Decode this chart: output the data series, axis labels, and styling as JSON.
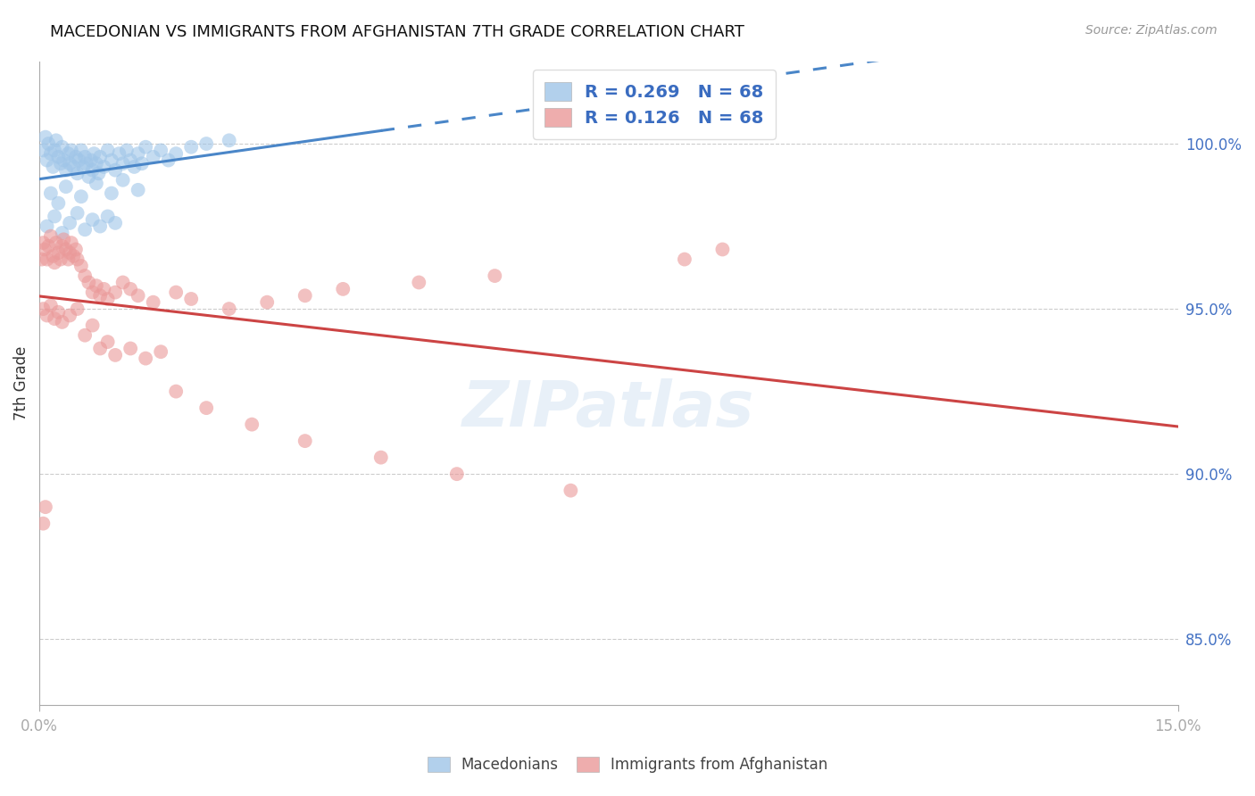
{
  "title": "MACEDONIAN VS IMMIGRANTS FROM AFGHANISTAN 7TH GRADE CORRELATION CHART",
  "source": "Source: ZipAtlas.com",
  "ylabel": "7th Grade",
  "xlim": [
    0.0,
    15.0
  ],
  "ylim": [
    83.0,
    102.5
  ],
  "yticks": [
    85.0,
    90.0,
    95.0,
    100.0
  ],
  "ytick_labels": [
    "85.0%",
    "90.0%",
    "95.0%",
    "100.0%"
  ],
  "xticks": [
    0.0,
    15.0
  ],
  "xtick_labels": [
    "0.0%",
    "15.0%"
  ],
  "blue_R": 0.269,
  "blue_N": 68,
  "pink_R": 0.126,
  "pink_N": 68,
  "blue_color": "#9fc5e8",
  "pink_color": "#ea9999",
  "blue_line_color": "#4a86c8",
  "pink_line_color": "#cc4444",
  "legend_blue_label": "Macedonians",
  "legend_pink_label": "Immigrants from Afghanistan",
  "blue_scatter_x": [
    0.05,
    0.08,
    0.1,
    0.12,
    0.15,
    0.18,
    0.2,
    0.22,
    0.25,
    0.28,
    0.3,
    0.32,
    0.35,
    0.38,
    0.4,
    0.42,
    0.45,
    0.48,
    0.5,
    0.52,
    0.55,
    0.58,
    0.6,
    0.62,
    0.65,
    0.68,
    0.7,
    0.72,
    0.75,
    0.78,
    0.8,
    0.85,
    0.9,
    0.95,
    1.0,
    1.05,
    1.1,
    1.15,
    1.2,
    1.25,
    1.3,
    1.35,
    1.4,
    1.5,
    1.6,
    1.7,
    1.8,
    2.0,
    2.2,
    2.5,
    0.15,
    0.25,
    0.35,
    0.55,
    0.75,
    0.95,
    1.1,
    1.3,
    0.1,
    0.2,
    0.3,
    0.4,
    0.5,
    0.6,
    0.7,
    0.8,
    0.9,
    1.0
  ],
  "blue_scatter_y": [
    99.8,
    100.2,
    99.5,
    100.0,
    99.7,
    99.3,
    99.8,
    100.1,
    99.6,
    99.4,
    99.9,
    99.5,
    99.2,
    99.7,
    99.4,
    99.8,
    99.3,
    99.6,
    99.1,
    99.5,
    99.8,
    99.3,
    99.6,
    99.4,
    99.0,
    99.5,
    99.2,
    99.7,
    99.4,
    99.1,
    99.6,
    99.3,
    99.8,
    99.5,
    99.2,
    99.7,
    99.4,
    99.8,
    99.5,
    99.3,
    99.7,
    99.4,
    99.9,
    99.6,
    99.8,
    99.5,
    99.7,
    99.9,
    100.0,
    100.1,
    98.5,
    98.2,
    98.7,
    98.4,
    98.8,
    98.5,
    98.9,
    98.6,
    97.5,
    97.8,
    97.3,
    97.6,
    97.9,
    97.4,
    97.7,
    97.5,
    97.8,
    97.6
  ],
  "pink_scatter_x": [
    0.03,
    0.05,
    0.07,
    0.1,
    0.12,
    0.15,
    0.18,
    0.2,
    0.22,
    0.25,
    0.28,
    0.3,
    0.32,
    0.35,
    0.38,
    0.4,
    0.42,
    0.45,
    0.48,
    0.5,
    0.55,
    0.6,
    0.65,
    0.7,
    0.75,
    0.8,
    0.85,
    0.9,
    1.0,
    1.1,
    1.2,
    1.3,
    1.5,
    1.8,
    2.0,
    2.5,
    3.0,
    3.5,
    4.0,
    5.0,
    6.0,
    8.5,
    0.05,
    0.1,
    0.15,
    0.2,
    0.25,
    0.3,
    0.4,
    0.5,
    0.6,
    0.7,
    0.8,
    0.9,
    1.0,
    1.2,
    1.4,
    1.6,
    1.8,
    2.2,
    2.8,
    3.5,
    4.5,
    5.5,
    7.0,
    9.0,
    0.05,
    0.08
  ],
  "pink_scatter_y": [
    96.5,
    97.0,
    96.8,
    96.5,
    96.9,
    97.2,
    96.6,
    96.4,
    97.0,
    96.7,
    96.5,
    96.9,
    97.1,
    96.8,
    96.5,
    96.7,
    97.0,
    96.6,
    96.8,
    96.5,
    96.3,
    96.0,
    95.8,
    95.5,
    95.7,
    95.4,
    95.6,
    95.3,
    95.5,
    95.8,
    95.6,
    95.4,
    95.2,
    95.5,
    95.3,
    95.0,
    95.2,
    95.4,
    95.6,
    95.8,
    96.0,
    96.5,
    95.0,
    94.8,
    95.1,
    94.7,
    94.9,
    94.6,
    94.8,
    95.0,
    94.2,
    94.5,
    93.8,
    94.0,
    93.6,
    93.8,
    93.5,
    93.7,
    92.5,
    92.0,
    91.5,
    91.0,
    90.5,
    90.0,
    89.5,
    96.8,
    88.5,
    89.0
  ]
}
